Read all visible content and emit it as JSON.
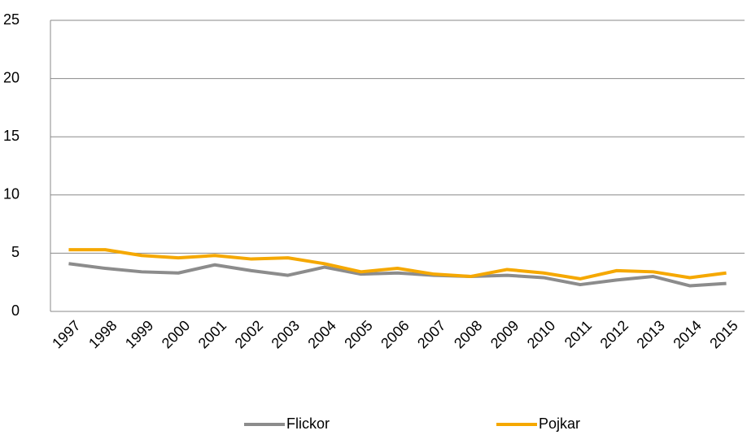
{
  "chart_data": {
    "type": "line",
    "categories": [
      "1997",
      "1998",
      "1999",
      "2000",
      "2001",
      "2002",
      "2003",
      "2004",
      "2005",
      "2006",
      "2007",
      "2008",
      "2009",
      "2010",
      "2011",
      "2012",
      "2013",
      "2014",
      "2015"
    ],
    "series": [
      {
        "name": "Flickor",
        "color": "#8c8c8c",
        "values": [
          4.1,
          3.7,
          3.4,
          3.3,
          4.0,
          3.5,
          3.1,
          3.8,
          3.2,
          3.3,
          3.1,
          3.0,
          3.1,
          2.9,
          2.3,
          2.7,
          3.0,
          2.2,
          2.4
        ]
      },
      {
        "name": "Pojkar",
        "color": "#f5a800",
        "values": [
          5.3,
          5.3,
          4.8,
          4.6,
          4.8,
          4.5,
          4.6,
          4.1,
          3.4,
          3.7,
          3.2,
          3.0,
          3.6,
          3.3,
          2.8,
          3.5,
          3.4,
          2.9,
          3.3
        ]
      }
    ],
    "ylim": [
      0,
      25
    ],
    "yticks": [
      0,
      5,
      10,
      15,
      20,
      25
    ],
    "grid": true,
    "legend": "bottom"
  }
}
